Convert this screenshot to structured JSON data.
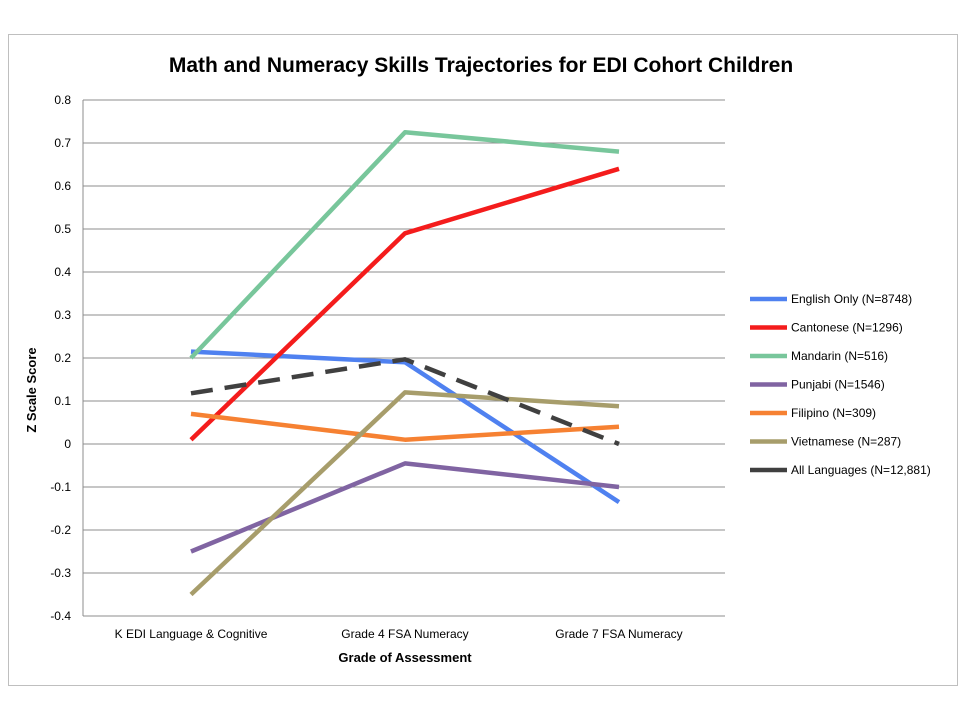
{
  "chart_data": {
    "type": "line",
    "title": "Math and Numeracy Skills Trajectories for EDI Cohort Children",
    "xlabel": "Grade of Assessment",
    "ylabel": "Z Scale Score",
    "categories": [
      "K EDI Language & Cognitive",
      "Grade 4 FSA Numeracy",
      "Grade 7 FSA Numeracy"
    ],
    "ylim": [
      -0.4,
      0.8
    ],
    "yticks": [
      0.8,
      0.7,
      0.6,
      0.5,
      0.4,
      0.3,
      0.2,
      0.1,
      0,
      -0.1,
      -0.2,
      -0.3,
      -0.4
    ],
    "grid": "horizontal",
    "legend_position": "right",
    "series": [
      {
        "name": "English Only (N=8748)",
        "color": "#4f81f0",
        "dashed": false,
        "values": [
          0.215,
          0.19,
          -0.135
        ]
      },
      {
        "name": "Cantonese  (N=1296)",
        "color": "#f41c1c",
        "dashed": false,
        "values": [
          0.01,
          0.49,
          0.64
        ]
      },
      {
        "name": "Mandarin  (N=516)",
        "color": "#78c69b",
        "dashed": false,
        "values": [
          0.2,
          0.725,
          0.68
        ]
      },
      {
        "name": "Punjabi  (N=1546)",
        "color": "#8064a2",
        "dashed": false,
        "values": [
          -0.25,
          -0.045,
          -0.1
        ]
      },
      {
        "name": "Filipino  (N=309)",
        "color": "#f68132",
        "dashed": false,
        "values": [
          0.07,
          0.01,
          0.04
        ]
      },
      {
        "name": "Vietnamese  (N=287)",
        "color": "#a79d6b",
        "dashed": false,
        "values": [
          -0.35,
          0.12,
          0.088
        ]
      },
      {
        "name": "All Languages  (N=12,881)",
        "color": "#404040",
        "dashed": true,
        "values": [
          0.118,
          0.197,
          0.0
        ]
      }
    ]
  }
}
